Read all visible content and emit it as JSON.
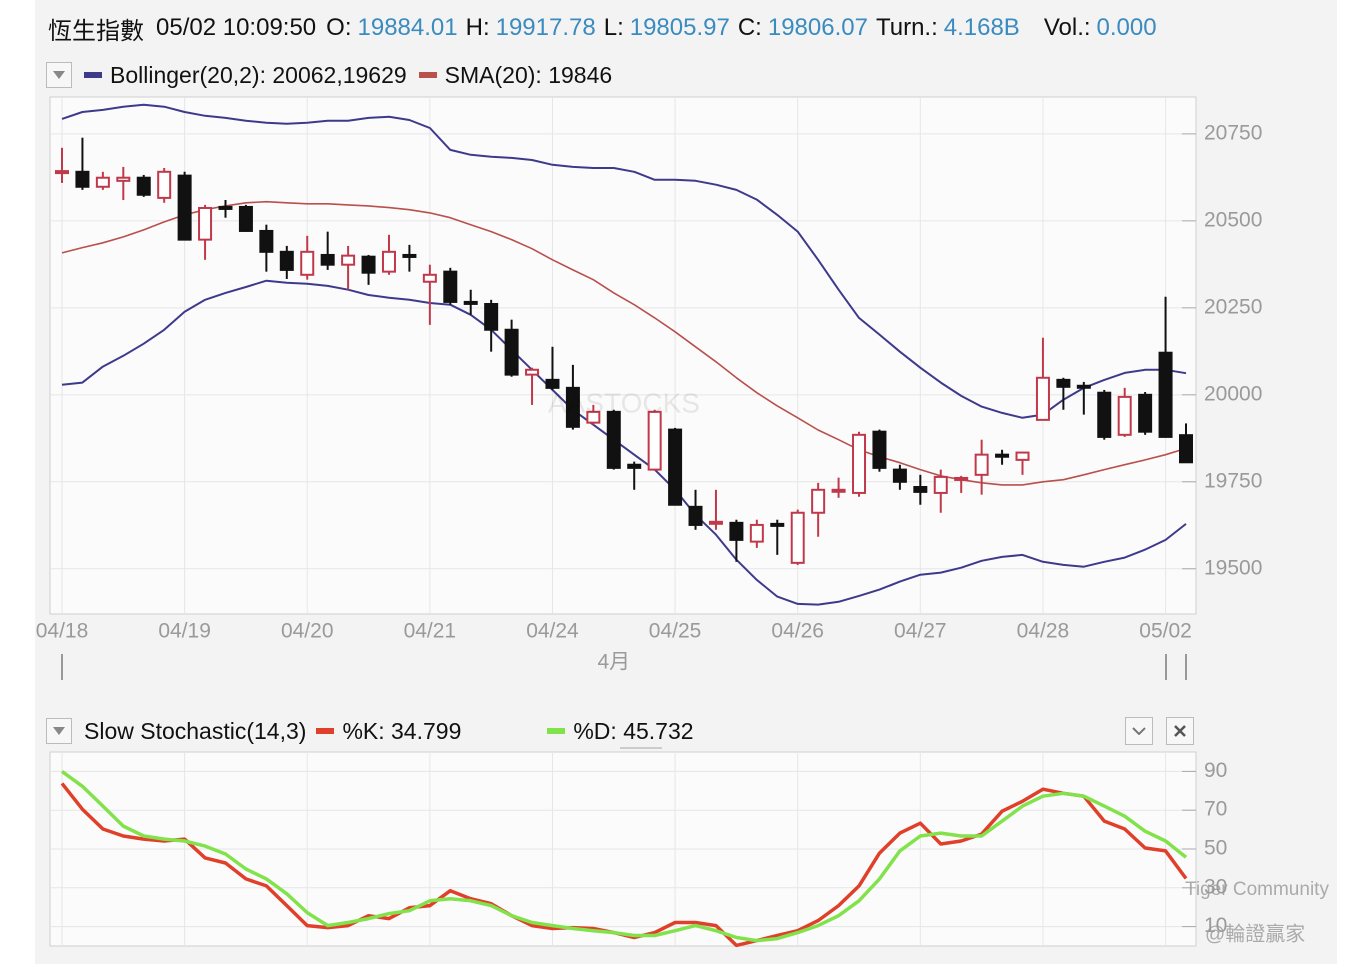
{
  "header": {
    "title": "恆生指數",
    "datetime": "05/02 10:09:50",
    "fields": [
      {
        "label": "O:",
        "value": "19884.01"
      },
      {
        "label": "H:",
        "value": "19917.78"
      },
      {
        "label": "L:",
        "value": "19805.97"
      },
      {
        "label": "C:",
        "value": "19806.07"
      },
      {
        "label": "Turn.:",
        "value": "4.168B"
      },
      {
        "label": "Vol.:",
        "value": "0.000"
      }
    ]
  },
  "watermarks": [
    "AASTOCKS",
    "Tiger Community",
    "@輪證贏家"
  ],
  "chart_data": [
    {
      "type": "candlestick",
      "categories": [
        "04/18",
        null,
        null,
        null,
        null,
        null,
        "04/19",
        null,
        null,
        null,
        null,
        null,
        "04/20",
        null,
        null,
        null,
        null,
        null,
        "04/21",
        null,
        null,
        null,
        null,
        null,
        "04/24",
        null,
        null,
        null,
        null,
        null,
        "04/25",
        null,
        null,
        null,
        null,
        null,
        "04/26",
        null,
        null,
        null,
        null,
        null,
        "04/27",
        null,
        null,
        null,
        null,
        null,
        "04/28",
        null,
        null,
        null,
        null,
        null,
        "05/02",
        null
      ],
      "month_label": "4月",
      "open": [
        20641,
        20641,
        20598,
        20615,
        20624,
        20566,
        20630,
        20446,
        20540,
        20540,
        20471,
        20411,
        20345,
        20402,
        20374,
        20397,
        20354,
        20402,
        20325,
        20354,
        20267,
        20261,
        20187,
        20058,
        20043,
        20020,
        19920,
        19951,
        19799,
        19785,
        19900,
        19678,
        19635,
        19632,
        19578,
        19629,
        19517,
        19661,
        19724,
        19718,
        19894,
        19785,
        19735,
        19718,
        19759,
        19770,
        19828,
        19813,
        19928,
        20043,
        20026,
        20006,
        19885,
        20000,
        20121,
        19884.01
      ],
      "high": [
        20710,
        20739,
        20641,
        20655,
        20632,
        20652,
        20641,
        20546,
        20560,
        20546,
        20489,
        20428,
        20457,
        20469,
        20428,
        20402,
        20460,
        20431,
        20374,
        20365,
        20302,
        20273,
        20216,
        20078,
        20138,
        20086,
        19971,
        19957,
        19808,
        19957,
        19905,
        19727,
        19727,
        19641,
        19641,
        19641,
        19670,
        19747,
        19762,
        19894,
        19900,
        19799,
        19770,
        19785,
        19767,
        19871,
        19842,
        19836,
        20164,
        20049,
        20037,
        20014,
        20020,
        20008,
        20282,
        19917.78
      ],
      "low": [
        20609,
        20589,
        20589,
        20560,
        20569,
        20552,
        20446,
        20388,
        20509,
        20469,
        20354,
        20333,
        20331,
        20359,
        20302,
        20316,
        20345,
        20354,
        20201,
        20259,
        20230,
        20124,
        20052,
        19971,
        20014,
        19900,
        19914,
        19785,
        19727,
        19785,
        19684,
        19612,
        19612,
        19520,
        19560,
        19540,
        19511,
        19592,
        19704,
        19707,
        19779,
        19727,
        19684,
        19661,
        19718,
        19713,
        19799,
        19770,
        19928,
        19957,
        19943,
        19871,
        19879,
        19885,
        19879,
        19805.97
      ],
      "close": [
        20643,
        20598,
        20624,
        20624,
        20575,
        20641,
        20446,
        20537,
        20537,
        20471,
        20411,
        20359,
        20411,
        20374,
        20400,
        20351,
        20411,
        20397,
        20345,
        20267,
        20264,
        20187,
        20058,
        20072,
        20020,
        19908,
        19951,
        19790,
        19790,
        19951,
        19684,
        19626,
        19635,
        19583,
        19626,
        19626,
        19661,
        19727,
        19727,
        19885,
        19790,
        19750,
        19721,
        19764,
        19761,
        19828,
        19822,
        19834,
        20049,
        20023,
        20023,
        19879,
        19994,
        19894,
        19879,
        19806.07
      ],
      "up_color": "#c0394a",
      "down_color": "#111111",
      "bands": {
        "name": "Bollinger(20,2): 20062,19629",
        "color": "#3d3a8c",
        "upper": [
          20793,
          20813,
          20819,
          20828,
          20834,
          20828,
          20813,
          20802,
          20796,
          20788,
          20782,
          20779,
          20782,
          20788,
          20788,
          20796,
          20799,
          20790,
          20767,
          20704,
          20690,
          20684,
          20681,
          20675,
          20661,
          20655,
          20652,
          20652,
          20641,
          20618,
          20618,
          20615,
          20604,
          20589,
          20561,
          20517,
          20469,
          20388,
          20302,
          20221,
          20173,
          20124,
          20078,
          20035,
          19997,
          19966,
          19948,
          19934,
          19943,
          19986,
          20020,
          20043,
          20063,
          20072,
          20072,
          20062
        ],
        "lower": [
          20029,
          20035,
          20081,
          20112,
          20147,
          20187,
          20239,
          20273,
          20293,
          20310,
          20328,
          20322,
          20319,
          20313,
          20302,
          20287,
          20279,
          20273,
          20264,
          20259,
          20230,
          20187,
          20129,
          20072,
          20014,
          19957,
          19914,
          19871,
          19828,
          19785,
          19727,
          19655,
          19598,
          19526,
          19468,
          19420,
          19399,
          19397,
          19405,
          19422,
          19440,
          19463,
          19483,
          19489,
          19503,
          19523,
          19534,
          19540,
          19520,
          19511,
          19506,
          19520,
          19532,
          19555,
          19583,
          19629
        ]
      },
      "series": [
        {
          "name": "SMA(20): 19846",
          "color": "#b8504c",
          "values": [
            20408,
            20423,
            20437,
            20454,
            20474,
            20497,
            20517,
            20532,
            20543,
            20552,
            20555,
            20552,
            20549,
            20549,
            20546,
            20543,
            20538,
            20532,
            20523,
            20509,
            20489,
            20469,
            20446,
            20420,
            20388,
            20359,
            20331,
            20293,
            20259,
            20221,
            20181,
            20138,
            20095,
            20049,
            20006,
            19968,
            19934,
            19899,
            19871,
            19842,
            19822,
            19805,
            19785,
            19767,
            19756,
            19747,
            19741,
            19741,
            19750,
            19756,
            19770,
            19785,
            19799,
            19813,
            19828,
            19846
          ]
        }
      ],
      "ylim": [
        19370,
        20856
      ],
      "yticks": [
        19500,
        19750,
        20000,
        20250,
        20500,
        20750
      ],
      "grid": true
    },
    {
      "type": "line",
      "title": "Slow Stochastic(14,3)",
      "series": [
        {
          "name": "%K: 34.799",
          "color": "#e0402a",
          "values": [
            83.8,
            70.5,
            60.3,
            56.7,
            55.1,
            54.1,
            55.1,
            45.4,
            42.8,
            34.6,
            31.0,
            20.8,
            10.5,
            9.5,
            10.5,
            15.6,
            14.1,
            19.7,
            20.8,
            28.5,
            24.4,
            21.8,
            15.6,
            10.5,
            9.0,
            9.5,
            9.0,
            6.9,
            4.4,
            6.9,
            12.1,
            12.1,
            10.5,
            0.3,
            2.8,
            5.4,
            7.9,
            13.1,
            20.8,
            31.0,
            47.9,
            58.2,
            63.3,
            52.6,
            54.1,
            57.7,
            69.5,
            74.6,
            80.8,
            78.7,
            77.2,
            64.4,
            60.3,
            50.5,
            49.0,
            34.8
          ]
        },
        {
          "name": "%D: 45.732",
          "color": "#82e24c",
          "values": [
            90.0,
            82.3,
            72.1,
            61.8,
            56.7,
            55.1,
            54.1,
            51.5,
            47.4,
            39.7,
            34.6,
            26.9,
            17.2,
            10.5,
            12.1,
            14.1,
            16.7,
            18.2,
            23.3,
            24.4,
            23.3,
            20.8,
            15.6,
            12.1,
            10.5,
            9.0,
            7.9,
            6.9,
            5.4,
            5.4,
            7.9,
            10.5,
            7.9,
            4.4,
            2.8,
            3.8,
            6.9,
            10.5,
            15.6,
            23.3,
            34.6,
            49.0,
            56.7,
            58.2,
            56.7,
            56.7,
            64.4,
            72.1,
            77.2,
            78.7,
            77.2,
            72.1,
            66.9,
            59.2,
            54.1,
            45.7
          ]
        }
      ],
      "ylim": [
        0,
        100
      ],
      "yticks": [
        10,
        30,
        50,
        70,
        90
      ],
      "grid": true
    }
  ]
}
